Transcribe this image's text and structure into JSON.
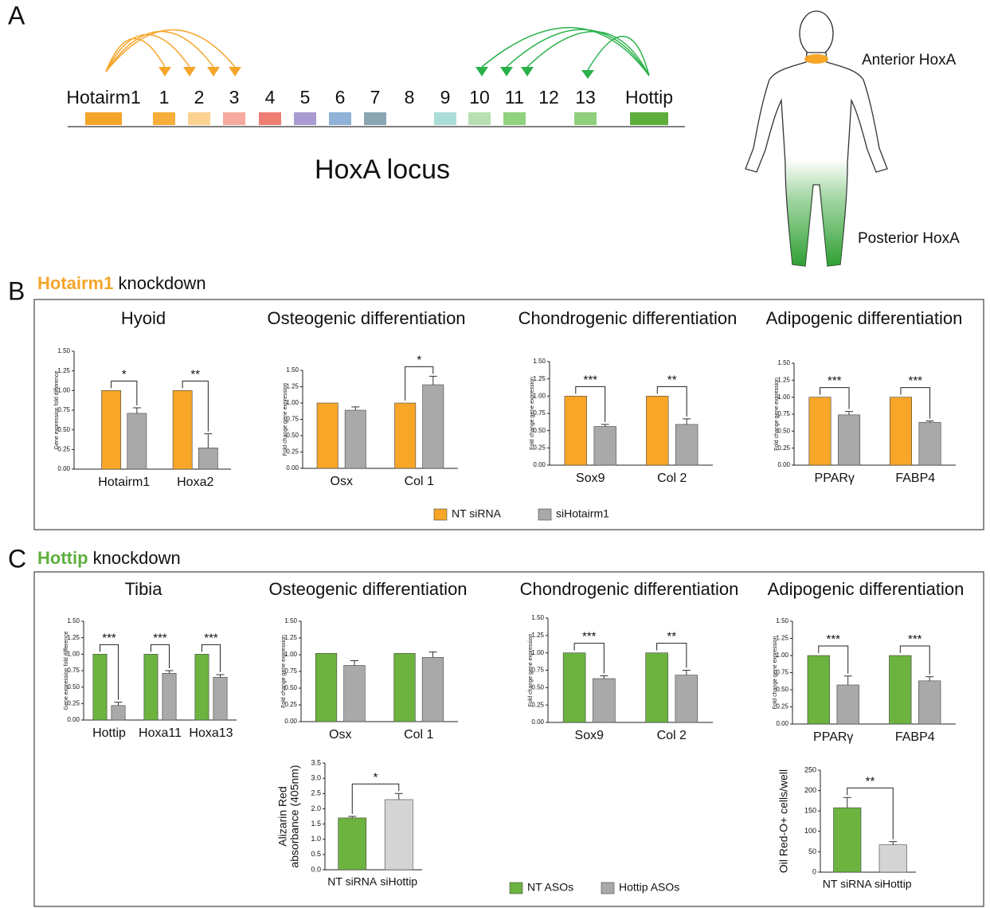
{
  "panel_a": {
    "label": "A",
    "title": "HoxA locus",
    "anterior": "Anterior HoxA",
    "posterior": "Posterior HoxA",
    "genes": [
      {
        "name": "Hotairm1",
        "color": "#f5a52a"
      },
      {
        "name": "1",
        "color": "#f6ad3a"
      },
      {
        "name": "2",
        "color": "#fbd28f"
      },
      {
        "name": "3",
        "color": "#f6aa9d"
      },
      {
        "name": "4",
        "color": "#ee7d74"
      },
      {
        "name": "5",
        "color": "#a99bd1"
      },
      {
        "name": "6",
        "color": "#8fb2d6"
      },
      {
        "name": "7",
        "color": "#8aa6b3"
      },
      {
        "name": "8",
        "color": null
      },
      {
        "name": "9",
        "color": "#abdcd8"
      },
      {
        "name": "10",
        "color": "#b7e0b2"
      },
      {
        "name": "11",
        "color": "#90d27f"
      },
      {
        "name": "12",
        "color": null
      },
      {
        "name": "13",
        "color": "#90cf7b"
      },
      {
        "name": "Hottip",
        "color": "#5fae3c"
      }
    ]
  },
  "panel_b": {
    "label": "B",
    "highlight": "Hotairm1",
    "heading": "knockdown"
  },
  "panel_c": {
    "label": "C",
    "highlight": "Hottip",
    "heading": "knockdown"
  },
  "chart_data": [
    {
      "type": "bar",
      "title": "Hyoid",
      "ylabel": "Gene expression fold difference",
      "categories": [
        "Hotairm1",
        "Hoxa2"
      ],
      "series": [
        {
          "name": "NT siRNA",
          "color": "#f7a628",
          "values": [
            1.0,
            1.0
          ],
          "errors": [
            0,
            0
          ]
        },
        {
          "name": "siHotairm1",
          "color": "#a9a9a9",
          "values": [
            0.71,
            0.27
          ],
          "errors": [
            0.07,
            0.18
          ]
        }
      ],
      "significance": [
        "*",
        "**"
      ],
      "ylim": [
        0,
        1.5
      ],
      "yticks": [
        {
          "value": 0,
          "label": "0.00"
        },
        0.25,
        {
          "value": 0.5,
          "label": "0.50"
        },
        0.75,
        {
          "value": 1,
          "label": "1.00"
        },
        1.25,
        {
          "value": 1.5,
          "label": "1.50"
        }
      ]
    },
    {
      "type": "bar",
      "title": "Osteogenic differentiation",
      "ylabel": "Fold change gene expression",
      "categories": [
        "Osx",
        "Col 1"
      ],
      "series": [
        {
          "name": "NT siRNA",
          "color": "#f7a628",
          "values": [
            1.0,
            1.0
          ],
          "errors": [
            0,
            0
          ]
        },
        {
          "name": "siHotairm1",
          "color": "#a9a9a9",
          "values": [
            0.89,
            1.28
          ],
          "errors": [
            0.05,
            0.13
          ]
        }
      ],
      "significance": [
        null,
        "*"
      ],
      "ylim": [
        0,
        1.5
      ],
      "yticks": [
        {
          "value": 0,
          "label": "0.00"
        },
        0.25,
        {
          "value": 0.5,
          "label": "0.50"
        },
        0.75,
        {
          "value": 1,
          "label": "1.00"
        },
        1.25,
        {
          "value": 1.5,
          "label": "1.50"
        }
      ]
    },
    {
      "type": "bar",
      "title": "Chondrogenic differentiation",
      "ylabel": "Fold change gene expression",
      "categories": [
        "Sox9",
        "Col 2"
      ],
      "series": [
        {
          "name": "NT siRNA",
          "color": "#f7a628",
          "values": [
            1.0,
            1.0
          ],
          "errors": [
            0,
            0
          ]
        },
        {
          "name": "siHotairm1",
          "color": "#a9a9a9",
          "values": [
            0.56,
            0.59
          ],
          "errors": [
            0.03,
            0.08
          ]
        }
      ],
      "significance": [
        "***",
        "**"
      ],
      "ylim": [
        0,
        1.5
      ],
      "yticks": [
        {
          "value": 0,
          "label": "0.00"
        },
        0.25,
        {
          "value": 0.5,
          "label": "0.50"
        },
        0.75,
        {
          "value": 1,
          "label": "1.00"
        },
        1.25,
        {
          "value": 1.5,
          "label": "1.50"
        }
      ]
    },
    {
      "type": "bar",
      "title": "Adipogenic differentiation",
      "ylabel": "Fold change gene expression",
      "categories": [
        "PPARγ",
        "FABP4"
      ],
      "series": [
        {
          "name": "NT siRNA",
          "color": "#f7a628",
          "values": [
            1.0,
            1.0
          ],
          "errors": [
            0,
            0
          ]
        },
        {
          "name": "siHotairm1",
          "color": "#a9a9a9",
          "values": [
            0.74,
            0.63
          ],
          "errors": [
            0.05,
            0.02
          ]
        }
      ],
      "significance": [
        "***",
        "***"
      ],
      "ylim": [
        0,
        1.5
      ],
      "yticks": [
        {
          "value": 0,
          "label": "0.00"
        },
        0.25,
        {
          "value": 0.5,
          "label": "0.50"
        },
        0.75,
        {
          "value": 1,
          "label": "1.00"
        },
        1.25,
        {
          "value": 1.5,
          "label": "1.50"
        }
      ]
    },
    {
      "type": "bar",
      "title": "Tibia",
      "ylabel": "Gene expression fold difference",
      "categories": [
        "Hottip",
        "Hoxa11",
        "Hoxa13"
      ],
      "series": [
        {
          "name": "NT ASOs",
          "color": "#6cb33f",
          "values": [
            1.0,
            1.0,
            1.0
          ],
          "errors": [
            0,
            0,
            0
          ]
        },
        {
          "name": "Hottip ASOs",
          "color": "#a9a9a9",
          "values": [
            0.22,
            0.71,
            0.65
          ],
          "errors": [
            0.05,
            0.04,
            0.04
          ]
        }
      ],
      "significance": [
        "***",
        "***",
        "***"
      ],
      "ylim": [
        0,
        1.5
      ],
      "yticks": [
        {
          "value": 0,
          "label": "0.00"
        },
        0.25,
        {
          "value": 0.5,
          "label": "0.50"
        },
        0.75,
        {
          "value": 1,
          "label": "1.00"
        },
        1.25,
        {
          "value": 1.5,
          "label": "1.50"
        }
      ]
    },
    {
      "type": "bar",
      "title": "Osteogenic differentiation",
      "ylabel": "Fold change gene expression",
      "categories": [
        "Osx",
        "Col 1"
      ],
      "series": [
        {
          "name": "NT ASOs",
          "color": "#6cb33f",
          "values": [
            1.02,
            1.02
          ],
          "errors": [
            0,
            0
          ]
        },
        {
          "name": "Hottip ASOs",
          "color": "#a9a9a9",
          "values": [
            0.84,
            0.96
          ],
          "errors": [
            0.07,
            0.08
          ]
        }
      ],
      "significance": [
        null,
        null
      ],
      "ylim": [
        0,
        1.5
      ],
      "yticks": [
        {
          "value": 0,
          "label": "0.00"
        },
        0.25,
        {
          "value": 0.5,
          "label": "0.50"
        },
        0.75,
        {
          "value": 1,
          "label": "1.00"
        },
        1.25,
        {
          "value": 1.5,
          "label": "1.50"
        }
      ]
    },
    {
      "type": "bar",
      "title": "Chondrogenic differentiation",
      "ylabel": "Fold change gene expression",
      "categories": [
        "Sox9",
        "Col 2"
      ],
      "series": [
        {
          "name": "NT ASOs",
          "color": "#6cb33f",
          "values": [
            1.0,
            1.0
          ],
          "errors": [
            0,
            0
          ]
        },
        {
          "name": "Hottip ASOs",
          "color": "#a9a9a9",
          "values": [
            0.63,
            0.68
          ],
          "errors": [
            0.04,
            0.07
          ]
        }
      ],
      "significance": [
        "***",
        "**"
      ],
      "ylim": [
        0,
        1.5
      ],
      "yticks": [
        {
          "value": 0,
          "label": "0.00"
        },
        0.25,
        {
          "value": 0.5,
          "label": "0.50"
        },
        0.75,
        {
          "value": 1,
          "label": "1.00"
        },
        1.25,
        {
          "value": 1.5,
          "label": "1.50"
        }
      ]
    },
    {
      "type": "bar",
      "title": "Adipogenic differentiation",
      "ylabel": "Fold change gene expression",
      "categories": [
        "PPARγ",
        "FABP4"
      ],
      "series": [
        {
          "name": "NT ASOs",
          "color": "#6cb33f",
          "values": [
            1.0,
            1.0
          ],
          "errors": [
            0,
            0
          ]
        },
        {
          "name": "Hottip ASOs",
          "color": "#a9a9a9",
          "values": [
            0.57,
            0.63
          ],
          "errors": [
            0.13,
            0.06
          ]
        }
      ],
      "significance": [
        "***",
        "***"
      ],
      "ylim": [
        0,
        1.5
      ],
      "yticks": [
        {
          "value": 0,
          "label": "0.00"
        },
        0.25,
        {
          "value": 0.5,
          "label": "0.50"
        },
        0.75,
        {
          "value": 1,
          "label": "1.00"
        },
        1.25,
        {
          "value": 1.5,
          "label": "1.50"
        }
      ]
    },
    {
      "type": "bar",
      "ylabel": [
        "Alizarin Red",
        "absorbance (405nm)"
      ],
      "categories": [
        "NT siRNA",
        "siHottip"
      ],
      "values": [
        1.7,
        2.3
      ],
      "errors": [
        0.05,
        0.2
      ],
      "colors": [
        "#6cb33f",
        "#d4d4d4"
      ],
      "significance": [
        "*"
      ],
      "ylim": [
        0,
        3.5
      ],
      "yticks": [
        {
          "value": 0,
          "label": "0.0"
        },
        0.5,
        {
          "value": 1,
          "label": "1.0"
        },
        1.5,
        {
          "value": 2,
          "label": "2.0"
        },
        2.5,
        {
          "value": 3,
          "label": "3.0"
        },
        3.5
      ]
    },
    {
      "type": "bar",
      "ylabel": [
        "Oil Red-O+ cells/well"
      ],
      "categories": [
        "NT siRNA",
        "siHottip"
      ],
      "values": [
        158,
        67
      ],
      "errors": [
        25,
        8
      ],
      "colors": [
        "#6cb33f",
        "#d4d4d4"
      ],
      "significance": [
        "**"
      ],
      "ylim": [
        0,
        250
      ],
      "yticks": [
        0,
        50,
        100,
        150,
        200,
        250
      ]
    }
  ]
}
